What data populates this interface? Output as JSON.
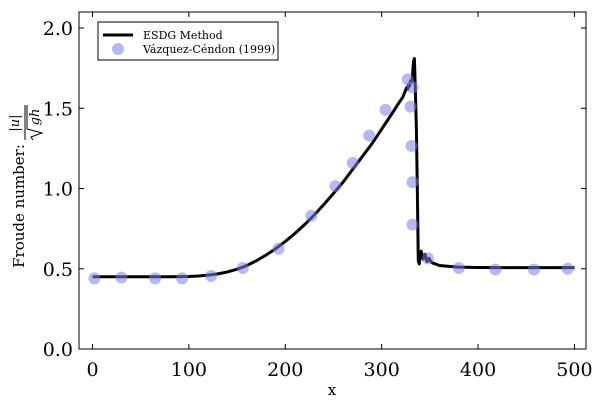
{
  "chart_data": {
    "type": "line",
    "xlabel": "x",
    "ylabel_prefix": "Froude number:",
    "ylabel_numerator": "|u|",
    "ylabel_denominator": "gh",
    "xlim": [
      -14,
      512
    ],
    "ylim": [
      0.0,
      2.1
    ],
    "x_ticks": [
      0,
      100,
      200,
      300,
      400,
      500
    ],
    "x_tick_labels": [
      "0",
      "100",
      "200",
      "300",
      "400",
      "500"
    ],
    "y_ticks": [
      0.0,
      0.5,
      1.0,
      1.5,
      2.0
    ],
    "y_tick_labels": [
      "0.0",
      "0.5",
      "1.0",
      "1.5",
      "2.0"
    ],
    "grid": false,
    "legend_position": "top-left",
    "series": [
      {
        "name": "ESDG Method",
        "kind": "line",
        "color": "#000000",
        "x": [
          0,
          20,
          40,
          60,
          80,
          100,
          110,
          120,
          130,
          140,
          150,
          160,
          170,
          180,
          190,
          200,
          210,
          220,
          230,
          240,
          250,
          260,
          270,
          280,
          290,
          300,
          310,
          318,
          322,
          324,
          326,
          327,
          328,
          329,
          330,
          331,
          332,
          333,
          334,
          335,
          336,
          337,
          338,
          339,
          340,
          341,
          343,
          345,
          347,
          349,
          351,
          353,
          356,
          360,
          370,
          380,
          400,
          420,
          440,
          460,
          480,
          500
        ],
        "y": [
          0.45,
          0.45,
          0.45,
          0.45,
          0.45,
          0.452,
          0.455,
          0.46,
          0.468,
          0.48,
          0.497,
          0.52,
          0.55,
          0.585,
          0.625,
          0.67,
          0.72,
          0.775,
          0.835,
          0.9,
          0.97,
          1.04,
          1.12,
          1.2,
          1.28,
          1.37,
          1.46,
          1.535,
          1.57,
          1.6,
          1.63,
          1.62,
          1.65,
          1.64,
          1.67,
          1.66,
          1.7,
          1.79,
          1.81,
          1.6,
          1.38,
          1.0,
          0.55,
          0.53,
          0.58,
          0.61,
          0.56,
          0.59,
          0.545,
          0.565,
          0.545,
          0.535,
          0.53,
          0.52,
          0.515,
          0.51,
          0.508,
          0.507,
          0.507,
          0.507,
          0.507,
          0.507
        ]
      },
      {
        "name": "Vázquez-Céndon (1999)",
        "kind": "scatter",
        "color": "#7b7fe6",
        "x": [
          2,
          30,
          65,
          93,
          123,
          156,
          193,
          227,
          252,
          270,
          287,
          304,
          327,
          330,
          331,
          332,
          332,
          332,
          348,
          380,
          418,
          458,
          493
        ],
        "y": [
          0.44,
          0.445,
          0.44,
          0.44,
          0.455,
          0.505,
          0.625,
          0.83,
          1.015,
          1.16,
          1.33,
          1.49,
          1.68,
          1.51,
          1.265,
          1.04,
          0.775,
          1.63,
          0.565,
          0.505,
          0.495,
          0.495,
          0.5
        ]
      }
    ]
  }
}
